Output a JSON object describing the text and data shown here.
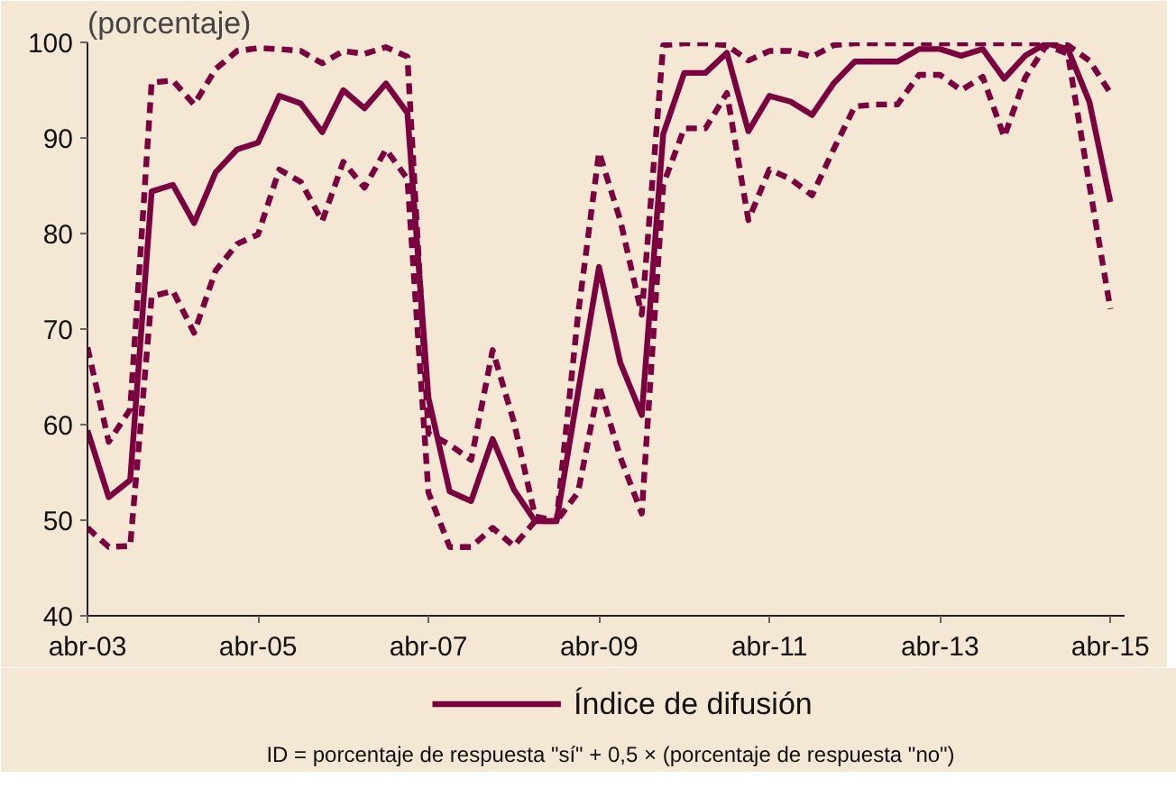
{
  "chart_data": {
    "type": "line",
    "ylabel": "(porcentaje)",
    "annotations": [
      "ID = porcentaje de respuesta \"sí\" + 0,5 × (porcentaje de respuesta \"no\")"
    ],
    "x": [
      "2003-04",
      "2003-07",
      "2003-10",
      "2004-01",
      "2004-04",
      "2004-07",
      "2004-10",
      "2005-01",
      "2005-04",
      "2005-07",
      "2005-10",
      "2006-01",
      "2006-04",
      "2006-07",
      "2006-10",
      "2007-01",
      "2007-04",
      "2007-07",
      "2007-10",
      "2008-01",
      "2008-04",
      "2008-07",
      "2008-10",
      "2009-01",
      "2009-04",
      "2009-07",
      "2009-10",
      "2010-01",
      "2010-04",
      "2010-07",
      "2010-10",
      "2011-01",
      "2011-04",
      "2011-07",
      "2011-10",
      "2012-01",
      "2012-04",
      "2012-07",
      "2012-10",
      "2013-01",
      "2013-04",
      "2013-07",
      "2013-10",
      "2014-01",
      "2014-04",
      "2014-07",
      "2014-10",
      "2015-01",
      "2015-04"
    ],
    "series": [
      {
        "name": "Índice de difusión",
        "color": "#7a0040",
        "line_style": "solid",
        "values": [
          59.4,
          52.4,
          54.2,
          84.4,
          85.1,
          81.1,
          86.4,
          88.8,
          89.5,
          94.4,
          93.6,
          90.6,
          95.0,
          93.1,
          95.7,
          92.6,
          62.8,
          53.0,
          52.0,
          58.5,
          53.2,
          49.9,
          49.9,
          63.4,
          76.5,
          66.5,
          61.0,
          90.4,
          96.8,
          96.8,
          98.9,
          90.7,
          94.4,
          93.8,
          92.4,
          95.7,
          98.0,
          98.0,
          98.0,
          99.3,
          99.3,
          98.6,
          99.3,
          96.2,
          98.6,
          99.9,
          99.3,
          93.8,
          83.3
        ]
      },
      {
        "color": "#7a0040",
        "line_style": "dashed",
        "values": [
          68.1,
          58.2,
          61.6,
          95.8,
          96.0,
          93.5,
          97.2,
          99.1,
          99.4,
          99.3,
          99.1,
          97.8,
          99.1,
          98.8,
          99.5,
          98.5,
          59.1,
          57.9,
          56.3,
          67.8,
          60.3,
          50.4,
          49.9,
          71.5,
          88.5,
          81.4,
          71.5,
          99.7,
          99.9,
          99.9,
          99.7,
          98.1,
          99.1,
          99.1,
          98.5,
          99.7,
          99.9,
          99.9,
          99.9,
          99.9,
          99.9,
          99.9,
          99.9,
          99.9,
          99.9,
          99.9,
          99.7,
          98.1,
          94.7
        ]
      },
      {
        "color": "#7a0040",
        "line_style": "dashed",
        "values": [
          49.2,
          47.2,
          47.3,
          73.4,
          74.0,
          69.6,
          76.1,
          78.9,
          79.9,
          86.7,
          85.4,
          81.3,
          87.5,
          84.8,
          88.8,
          85.7,
          52.9,
          47.2,
          47.2,
          49.2,
          47.3,
          49.9,
          49.9,
          52.9,
          64.1,
          56.6,
          50.7,
          85.1,
          91.0,
          91.0,
          94.7,
          81.4,
          86.7,
          85.7,
          84.0,
          88.8,
          93.3,
          93.5,
          93.5,
          96.6,
          96.6,
          95.0,
          96.4,
          90.1,
          96.3,
          99.7,
          98.8,
          85.1,
          72.1
        ]
      }
    ],
    "xlim": [
      "2003-04",
      "2015-06"
    ],
    "xticks": [
      {
        "value": "2003-04",
        "label": "abr-03"
      },
      {
        "value": "2005-04",
        "label": "abr-05"
      },
      {
        "value": "2007-04",
        "label": "abr-07"
      },
      {
        "value": "2009-04",
        "label": "abr-09"
      },
      {
        "value": "2011-04",
        "label": "abr-11"
      },
      {
        "value": "2013-04",
        "label": "abr-13"
      },
      {
        "value": "2015-04",
        "label": "abr-15"
      }
    ],
    "ylim": [
      40,
      100
    ],
    "yticks": [
      40,
      50,
      60,
      70,
      80,
      90,
      100
    ],
    "grid": false,
    "legend": "bottom"
  }
}
